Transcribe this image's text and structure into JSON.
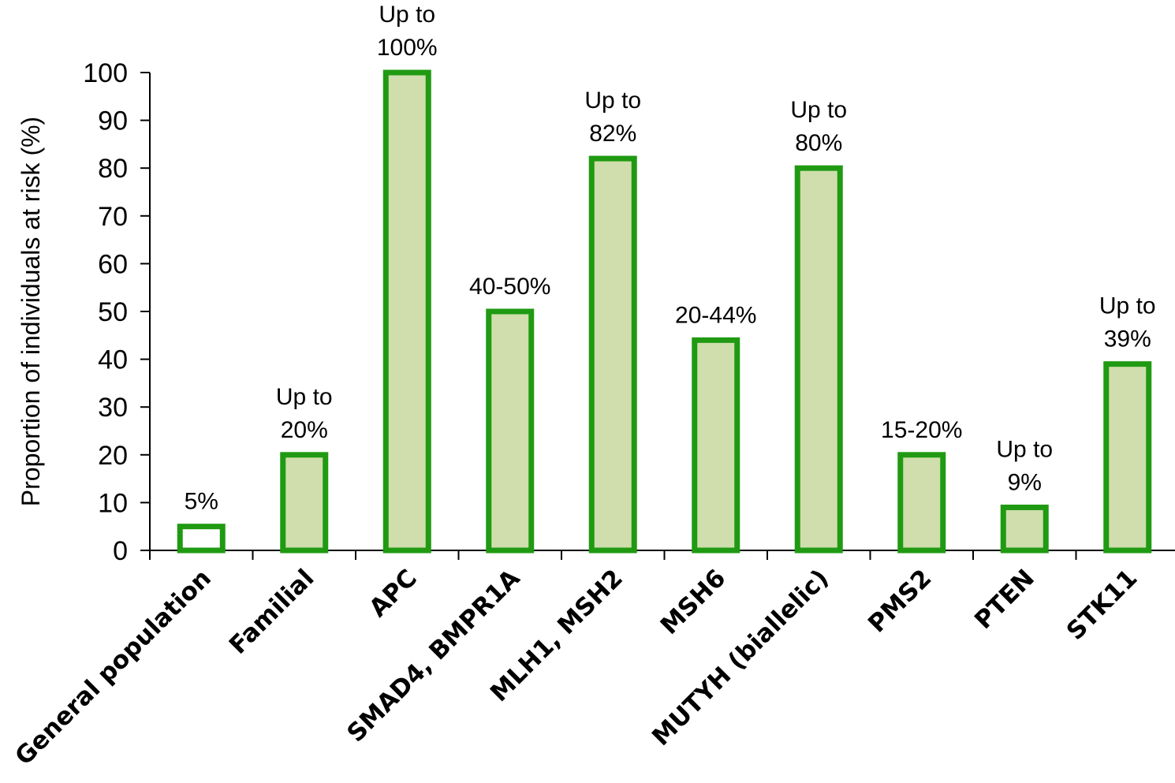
{
  "chart_data": {
    "type": "bar",
    "title": "",
    "xlabel": "",
    "ylabel": "Proportion of individuals at risk (%)",
    "ylim": [
      0,
      100
    ],
    "yticks": [
      0,
      10,
      20,
      30,
      40,
      50,
      60,
      70,
      80,
      90,
      100
    ],
    "grid": false,
    "categories": [
      "General population",
      "Familial",
      "APC",
      "SMAD4, BMPR1A",
      "MLH1, MSH2",
      "MSH6",
      "MUTYH (biallelic)",
      "PMS2",
      "PTEN",
      "STK11"
    ],
    "values": [
      5,
      20,
      100,
      50,
      82,
      44,
      80,
      20,
      9,
      39
    ],
    "annotations": [
      [
        "5%"
      ],
      [
        "Up to",
        "20%"
      ],
      [
        "Up to",
        "100%"
      ],
      [
        "40-50%"
      ],
      [
        "Up to",
        "82%"
      ],
      [
        "20-44%"
      ],
      [
        "Up to",
        "80%"
      ],
      [
        "15-20%"
      ],
      [
        "Up to",
        "9%"
      ],
      [
        "Up to",
        "39%"
      ]
    ],
    "colors": {
      "bar_fill": "#cfdeac",
      "first_bar_fill": "#ffffff",
      "bar_stroke": "#1f9a12",
      "axis": "#000000"
    }
  }
}
